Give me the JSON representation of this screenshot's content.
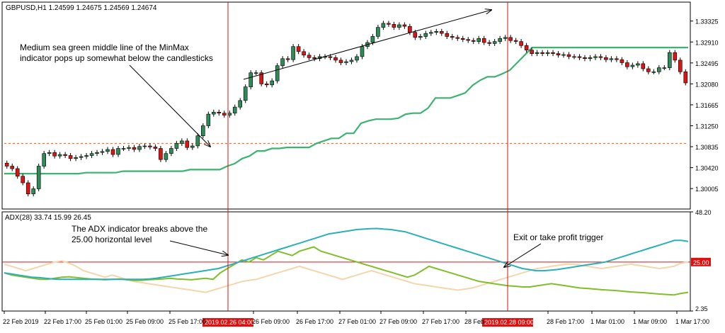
{
  "header": {
    "title": "GBPUSD,H1  1.24599 1.24675 1.24569 1.24674",
    "adx_title": "ADX(28) 33.74 15.99 26.45"
  },
  "annotations": {
    "minmax_line1": "Medium sea green middle line of the MinMax",
    "minmax_line2": "indicator pops up somewhat below the candlesticks",
    "adx_line1": "The ADX indicator breaks above the",
    "adx_line2": "25.00 horizontal level",
    "exit": "Exit or take profit trigger"
  },
  "colors": {
    "up_candle": "#2e8b57",
    "down_candle": "#dc1414",
    "minmax_mid": "#3cb371",
    "minmax_hi": "#ff5a00",
    "adx": "#2ab0b8",
    "plus_di": "#7fbf2a",
    "minus_di": "#f5d5aa",
    "marker": "#e01010",
    "level": "#e01010"
  },
  "chart_data": [
    {
      "type": "candlestick",
      "title": "GBPUSD,H1",
      "y_ticks": [
        "1.33325",
        "1.32910",
        "1.32495",
        "1.32080",
        "1.31665",
        "1.31250",
        "1.30835",
        "1.30420",
        "1.30005"
      ],
      "ylim": [
        1.296,
        1.337
      ],
      "x_ticks": [
        "22 Feb 2019",
        "22 Feb 17:00",
        "25 Feb 01:00",
        "25 Feb 09:00",
        "25 Feb 17:00",
        "26 Feb 09:00",
        "26 Feb 17:00",
        "27 Feb 01:00",
        "27 Feb 09:00",
        "27 Feb 17:00",
        "28 Feb",
        "28 Feb 17:00",
        "1 Mar 01:00",
        "1 Mar 09:00",
        "1 Mar 17:00"
      ],
      "time_markers": [
        "2019.02.26 04:00",
        "2019.02.28 09:00"
      ],
      "close": [
        1.3045,
        1.304,
        1.3025,
        1.3012,
        1.299,
        1.3,
        1.3045,
        1.307,
        1.3072,
        1.3065,
        1.3068,
        1.3066,
        1.306,
        1.3062,
        1.3064,
        1.3066,
        1.307,
        1.3072,
        1.3074,
        1.3078,
        1.3068,
        1.308,
        1.308,
        1.3082,
        1.3078,
        1.3084,
        1.3085,
        1.3083,
        1.308,
        1.3058,
        1.307,
        1.308,
        1.309,
        1.3095,
        1.3082,
        1.3085,
        1.3105,
        1.3125,
        1.3148,
        1.3152,
        1.315,
        1.3146,
        1.315,
        1.3162,
        1.3175,
        1.3202,
        1.323,
        1.323,
        1.3208,
        1.3206,
        1.3214,
        1.3244,
        1.3258,
        1.3256,
        1.3282,
        1.3272,
        1.3265,
        1.326,
        1.3258,
        1.3262,
        1.3262,
        1.326,
        1.3255,
        1.325,
        1.3252,
        1.3255,
        1.3262,
        1.3282,
        1.329,
        1.3302,
        1.332,
        1.3328,
        1.3326,
        1.332,
        1.3325,
        1.3322,
        1.331,
        1.33,
        1.3302,
        1.3308,
        1.331,
        1.3312,
        1.3308,
        1.3302,
        1.33,
        1.3298,
        1.3296,
        1.3294,
        1.3292,
        1.3298,
        1.329,
        1.3288,
        1.3292,
        1.3298,
        1.33,
        1.3294,
        1.3292,
        1.3284,
        1.3275,
        1.3268,
        1.327,
        1.3268,
        1.327,
        1.3268,
        1.3265,
        1.3266,
        1.3262,
        1.3262,
        1.326,
        1.3258,
        1.326,
        1.3262,
        1.326,
        1.3256,
        1.3258,
        1.3256,
        1.325,
        1.3242,
        1.3245,
        1.3248,
        1.3238,
        1.3232,
        1.3232,
        1.324,
        1.324,
        1.327,
        1.3255,
        1.3232,
        1.321
      ],
      "series": [
        {
          "name": "MinMax middle",
          "values": [
            1.303,
            1.303,
            1.303,
            1.303,
            1.303,
            1.303,
            1.303,
            1.303,
            1.303,
            1.303,
            1.303,
            1.3032,
            1.3032,
            1.3032,
            1.3032,
            1.3032,
            1.3035,
            1.3035,
            1.3035,
            1.3035,
            1.3035,
            1.3035,
            1.3035,
            1.3035,
            1.3035,
            1.3038,
            1.3038,
            1.3038,
            1.3038,
            1.3038,
            1.3045,
            1.305,
            1.306,
            1.3065,
            1.3075,
            1.3075,
            1.308,
            1.308,
            1.3082,
            1.3082,
            1.3082,
            1.3082,
            1.309,
            1.3095,
            1.31,
            1.31,
            1.311,
            1.311,
            1.313,
            1.3135,
            1.3138,
            1.3138,
            1.3138,
            1.314,
            1.3148,
            1.315,
            1.315,
            1.316,
            1.318,
            1.318,
            1.318,
            1.3185,
            1.319,
            1.3205,
            1.3215,
            1.3222,
            1.3222,
            1.3228,
            1.3235,
            1.325,
            1.3265,
            1.328,
            1.328,
            1.328,
            1.328,
            1.328,
            1.328,
            1.328,
            1.328,
            1.328,
            1.328,
            1.328,
            1.328,
            1.328,
            1.328,
            1.328,
            1.328,
            1.328,
            1.328,
            1.328,
            1.328,
            1.328,
            1.328
          ]
        },
        {
          "name": "MinMax upper",
          "values": [
            1.309,
            1.309,
            1.309,
            1.309,
            1.309,
            1.309,
            1.309,
            1.309,
            1.309,
            1.309,
            1.309,
            1.309,
            1.309,
            1.309,
            1.309,
            1.309,
            1.309,
            1.309,
            1.309,
            1.309,
            1.309,
            1.309,
            1.309,
            1.309,
            1.309,
            1.309,
            1.309,
            1.309,
            1.309,
            1.309,
            1.309,
            1.309,
            1.309,
            1.309,
            1.309,
            1.309,
            1.309,
            1.309,
            1.309,
            1.309,
            1.309,
            1.309,
            1.309,
            1.309,
            1.309,
            1.309,
            1.309,
            1.309,
            1.309,
            1.309,
            1.309,
            1.309,
            1.309,
            1.309,
            1.309,
            1.309,
            1.309,
            1.309,
            1.309,
            1.309,
            1.309,
            1.309,
            1.309,
            1.309,
            1.309,
            1.309,
            1.309,
            1.309,
            1.309,
            1.309,
            1.309,
            1.309,
            1.309,
            1.309,
            1.309,
            1.309,
            1.309,
            1.309,
            1.309,
            1.309,
            1.309,
            1.309,
            1.309,
            1.309,
            1.309,
            1.309,
            1.309,
            1.309,
            1.309,
            1.309,
            1.309,
            1.309,
            1.309,
            1.309,
            1.309,
            1.309,
            1.309,
            1.309,
            1.309,
            1.309,
            1.309,
            1.309,
            1.309,
            1.309,
            1.309,
            1.309,
            1.309,
            1.309,
            1.309,
            1.309,
            1.309,
            1.309,
            1.309,
            1.309,
            1.309,
            1.309,
            1.309,
            1.309,
            1.309,
            1.309,
            1.309,
            1.309,
            1.309,
            1.309,
            1.309,
            1.309,
            1.309,
            1.309,
            1.309
          ]
        }
      ]
    },
    {
      "type": "line",
      "title": "ADX(28) 33.74 15.99 26.45",
      "y_ticks": [
        "48.20",
        "25.00",
        "2.35"
      ],
      "ylim": [
        2.35,
        48.2
      ],
      "level": 25.0,
      "series": [
        {
          "name": "ADX",
          "values": [
            20,
            19.5,
            19,
            18.5,
            18,
            17.8,
            17.5,
            17.2,
            17,
            17,
            17,
            17,
            17,
            17,
            17,
            17,
            17,
            17,
            17,
            17,
            17,
            17.2,
            17.5,
            18,
            18.5,
            19,
            19.5,
            20,
            20.5,
            21,
            21.5,
            22,
            23,
            24,
            25,
            26,
            27,
            28,
            29,
            30,
            31,
            32,
            33,
            34,
            35,
            36,
            37,
            38,
            38.5,
            39,
            39.5,
            40,
            40.2,
            40.4,
            40.5,
            40.2,
            40,
            39.5,
            39,
            38,
            37,
            36,
            35,
            34,
            33,
            32,
            31,
            30,
            29,
            28,
            27,
            26,
            25,
            24,
            23,
            22,
            21.5,
            21,
            21,
            21.2,
            21.5,
            22,
            22.5,
            23,
            23.5,
            24,
            24.5,
            25,
            26,
            27,
            28,
            29,
            30,
            31,
            32,
            33,
            34,
            35,
            35,
            34.5
          ]
        },
        {
          "name": "+DI",
          "values": [
            20,
            19,
            18.5,
            18,
            17.5,
            17,
            17,
            17.5,
            18,
            18.2,
            17.8,
            17.5,
            17.2,
            17,
            16.8,
            17,
            17.2,
            16.8,
            16.5,
            16.5,
            16.8,
            17,
            17.2,
            17.5,
            17.2,
            17,
            16.8,
            17.2,
            17.5,
            17,
            20,
            22,
            24,
            26,
            25,
            27,
            26,
            28,
            30,
            29,
            28,
            30,
            31,
            32,
            30,
            29,
            28,
            27,
            26,
            25,
            24,
            23,
            22,
            21,
            20,
            19,
            18,
            19,
            21,
            23,
            22,
            21,
            20,
            19,
            18,
            17,
            16,
            15.5,
            15,
            14.5,
            14,
            13.8,
            13.5,
            13.5,
            14,
            14.5,
            15,
            14.5,
            14,
            13.5,
            13,
            12.8,
            12.5,
            12.2,
            12,
            11.8,
            11.5,
            11.2,
            11,
            10.8,
            10.5,
            10.2,
            10,
            9.8,
            10.5,
            11
          ]
        },
        {
          "name": "-DI",
          "values": [
            24,
            23,
            22,
            21,
            22,
            23,
            24,
            25,
            25.5,
            24.5,
            23,
            21,
            20,
            19,
            18,
            19,
            18,
            17,
            16,
            15.5,
            15,
            14.5,
            14,
            13.5,
            13,
            12.5,
            12,
            11.5,
            11,
            12,
            13,
            14,
            15,
            16,
            16.5,
            17,
            18,
            19,
            20,
            21,
            22,
            23,
            22,
            21,
            20,
            19,
            18,
            17,
            18,
            19,
            20,
            21,
            20,
            19,
            18,
            17,
            16,
            15,
            14.5,
            14,
            13.5,
            13,
            12.5,
            12,
            12.5,
            13,
            14,
            15,
            16,
            17,
            18,
            19,
            20,
            21,
            22,
            22.5,
            23,
            23.5,
            24,
            24,
            23.5,
            23,
            22.5,
            22,
            22.5,
            23,
            23.5,
            24,
            23.5,
            23,
            22.5,
            22,
            22.5,
            23,
            24.5,
            25
          ]
        }
      ]
    }
  ]
}
